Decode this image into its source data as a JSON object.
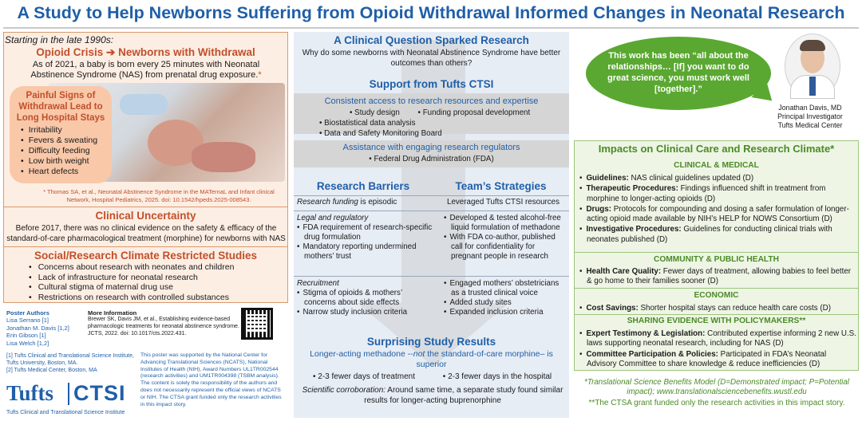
{
  "title": "A Study to Help Newborns Suffering from Opioid Withdrawal Informed Changes in Neonatal Research",
  "left": {
    "intro_italic": "Starting in the late 1990s:",
    "opioid_head_a": "Opioid Crisis",
    "opioid_arrow": "➔",
    "opioid_head_b": "Newborns with Withdrawal",
    "intro_text": "As of 2021, a baby is born every 25 minutes with Neonatal Abstinence Syndrome (NAS) from prenatal drug exposure.",
    "asterisk": "*",
    "signs_title": "Painful Signs of Withdrawal Lead to Long Hospital Stays",
    "signs": [
      "Irritability",
      "Fevers & sweating",
      "Difficulty feeding",
      "Low birth weight",
      "Heart defects"
    ],
    "reference": "* Thomas SA, et al., Neonatal Abstinence Syndrome in the MATernaL and Infant clinical Network, Hospital Pediatrics, 2025. doi: 10.1542/hpeds.2025-008543.",
    "clinical_title": "Clinical Uncertainty",
    "clinical_text": "Before 2017, there was no clinical evidence on the safety & efficacy of the standard-of-care pharmacological treatment (morphine) for newborns with NAS",
    "social_title": "Social/Research Climate Restricted Studies",
    "social": [
      "Concerns about research with neonates and children",
      "Lack of infrastructure for neonatal research",
      "Cultural stigma of maternal drug use",
      "Restrictions on research with controlled substances"
    ],
    "authors_head": "Poster Authors",
    "authors": [
      "Lisa Serrano [1]",
      "Jonathan M. Davis [1,2]",
      "Erin Gibson [1]",
      "Lisa Welch [1,2]"
    ],
    "more_head": "More Information",
    "more_text": "Brewer SK, Davis JM, et al., Establishing evidence-based pharmacologic treatments for neonatal abstinence syndrome. JCTS, 2022. doi: 10.1017/cts.2022.431.",
    "affiliations": [
      "[1] Tufts Clinical and Translational Science Institute, Tufts University, Boston, MA.",
      "[2] Tufts Medical Center, Boston, MA"
    ],
    "support_text": "This poster was supported by the National Center for Advancing Translational Sciences (NCATS), National Institutes of Health (NIH), Award Numbers UL1TR002544 (research activities) and UM1TR004398 (TSBM analysis). The content is solely the responsibility of the authors and does not necessarily represent the official views of NCATS or NIH. The CTSA grant funded only the research activities in this impact story.",
    "logo_tufts": "Tufts",
    "logo_ctsi": "CTSI",
    "logo_sub": "Tufts Clinical and Translational Science Institute"
  },
  "middle": {
    "question_head": "A Clinical Question Sparked Research",
    "question_text": "Why do some newborns with Neonatal Abstinence Syndrome have better outcomes than others?",
    "support_head": "Support from Tufts CTSI",
    "access_title": "Consistent access to research resources and expertise",
    "access_items": [
      "Study design",
      "Funding proposal development",
      "Biostatistical data analysis",
      "Data and Safety Monitoring Board"
    ],
    "regulators_title": "Assistance with engaging research regulators",
    "regulators_text": "Federal Drug Administration (FDA)",
    "barriers_head": "Research Barriers",
    "strategies_head": "Team’s Strategies",
    "funding_label": "Research funding",
    "funding_tail": "is episodic",
    "funding_strategy": "Leveraged Tufts CTSI resources",
    "legal_label": "Legal and regulatory",
    "legal_barriers": [
      "FDA requirement of research-specific drug formulation",
      "Mandatory reporting undermined mothers’ trust"
    ],
    "legal_strategies": [
      "Developed & tested alcohol-free liquid formulation of methadone",
      "With FDA co-author, published call for confidentiality for pregnant people in research"
    ],
    "recruit_label": "Recruitment",
    "recruit_barriers": [
      "Stigma of opioids & mothers’ concerns about side effects",
      "Narrow study inclusion criteria"
    ],
    "recruit_strategies": [
      "Engaged mothers’ obstetricians as a trusted clinical voice",
      "Added study sites",
      "Expanded inclusion criteria"
    ],
    "results_head": "Surprising Study Results",
    "results_sub_a": "Longer-acting methadone --",
    "results_sub_em": "not",
    "results_sub_b": " the standard-of-care morphine– is superior",
    "results_bullets": [
      "2-3 fewer days of treatment",
      "2-3 fewer days in the hospital"
    ],
    "sci_label": "Scientific corroboration:",
    "sci_text": " Around same time, a separate study found similar results for longer-acting buprenorphine"
  },
  "right": {
    "quote": "This work has been “all about the relationships… [If] you want to do great science, you must work well [together].”",
    "person_name": "Jonathan Davis, MD",
    "person_role": "Principal Investigator",
    "person_org": "Tufts Medical Center",
    "impacts_head": "Impacts on Clinical Care and Research Climate*",
    "clinical_head": "CLINICAL & MEDICAL",
    "clinical_items": [
      {
        "label": "Guidelines:",
        "text": " NAS clinical guidelines updated (D)"
      },
      {
        "label": "Therapeutic Procedures:",
        "text": " Findings influenced shift in treatment from morphine to longer-acting opioids (D)"
      },
      {
        "label": "Drugs:",
        "text": " Protocols for compounding and dosing a safer formulation of longer-acting opioid made available by NIH’s HELP for NOWS Consortium (D)"
      },
      {
        "label": "Investigative Procedures:",
        "text": " Guidelines for conducting clinical trials with neonates published (D)"
      }
    ],
    "community_head": "COMMUNITY & PUBLIC HEALTH",
    "community_items": [
      {
        "label": "Health Care Quality:",
        "text": " Fewer days of treatment, allowing babies to feel better & go home to their families sooner (D)"
      }
    ],
    "economic_head": "ECONOMIC",
    "economic_items": [
      {
        "label": "Cost Savings:",
        "text": " Shorter hospital stays can reduce health care costs (D)"
      }
    ],
    "policy_head": "SHARING EVIDENCE WITH POLICYMAKERS**",
    "policy_items": [
      {
        "label": "Expert Testimony & Legislation:",
        "text": " Contributed expertise informing 2 new U.S. laws supporting neonatal research, including for NAS (D)"
      },
      {
        "label": "Committee Participation & Policies:",
        "text": " Participated in FDA’s Neonatal Advisory Committee to share knowledge & reduce inefficiencies (D)"
      }
    ],
    "footnote1": "*Translational Science Benefits Model (D=Demonstrated impact; P=Potential impact); www.translationalsciencebenefits.wustl.edu",
    "footnote2": "**The CTSA grant funded only the research activities in this impact story."
  },
  "colors": {
    "title_blue": "#1f5fa8",
    "accent_orange": "#c0502a",
    "accent_green": "#4a8b25",
    "bubble_green": "#5aa831",
    "left_panel": "#fdeee4",
    "middle_panel": "#e7edf5",
    "right_panel": "#eef5e5"
  }
}
